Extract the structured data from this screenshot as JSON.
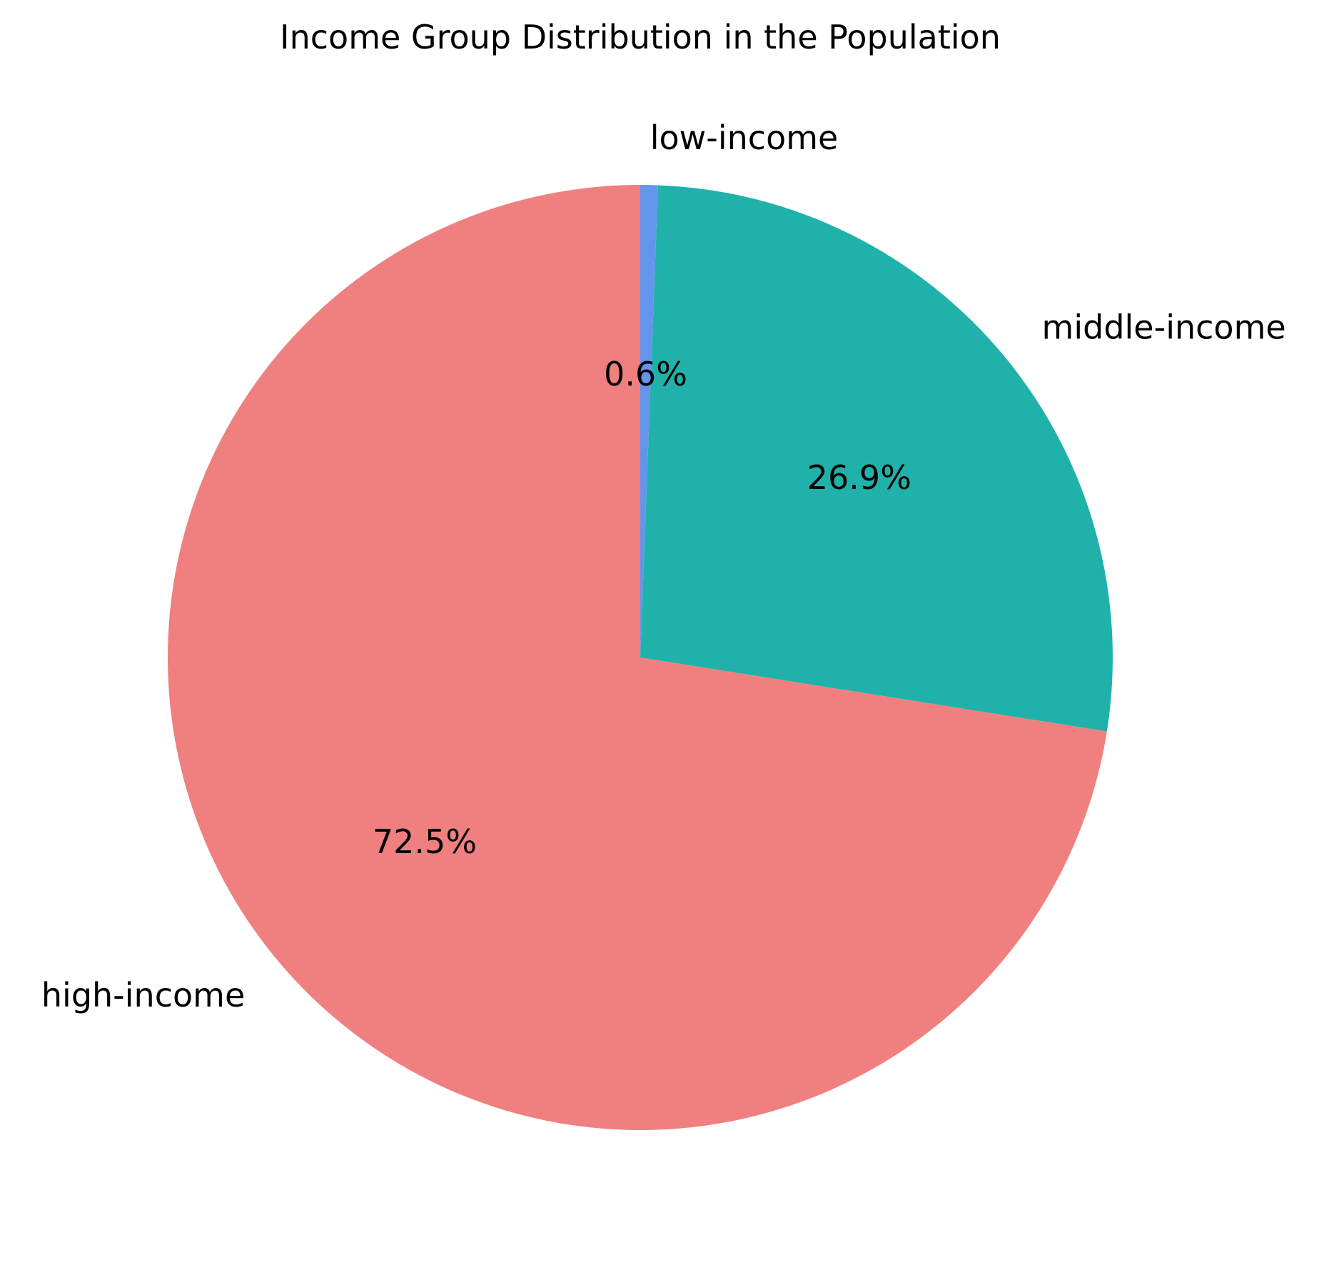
{
  "chart_data": {
    "type": "pie",
    "title": "Income Group Distribution in the Population",
    "start_angle_deg": 90,
    "direction": "counterclockwise",
    "slices": [
      {
        "label": "high-income",
        "value": 72.5,
        "pct_label": "72.5%",
        "color": "#F08080"
      },
      {
        "label": "middle-income",
        "value": 26.9,
        "pct_label": "26.9%",
        "color": "#20B2AA"
      },
      {
        "label": "low-income",
        "value": 0.6,
        "pct_label": "0.6%",
        "color": "#6495ED"
      }
    ]
  }
}
